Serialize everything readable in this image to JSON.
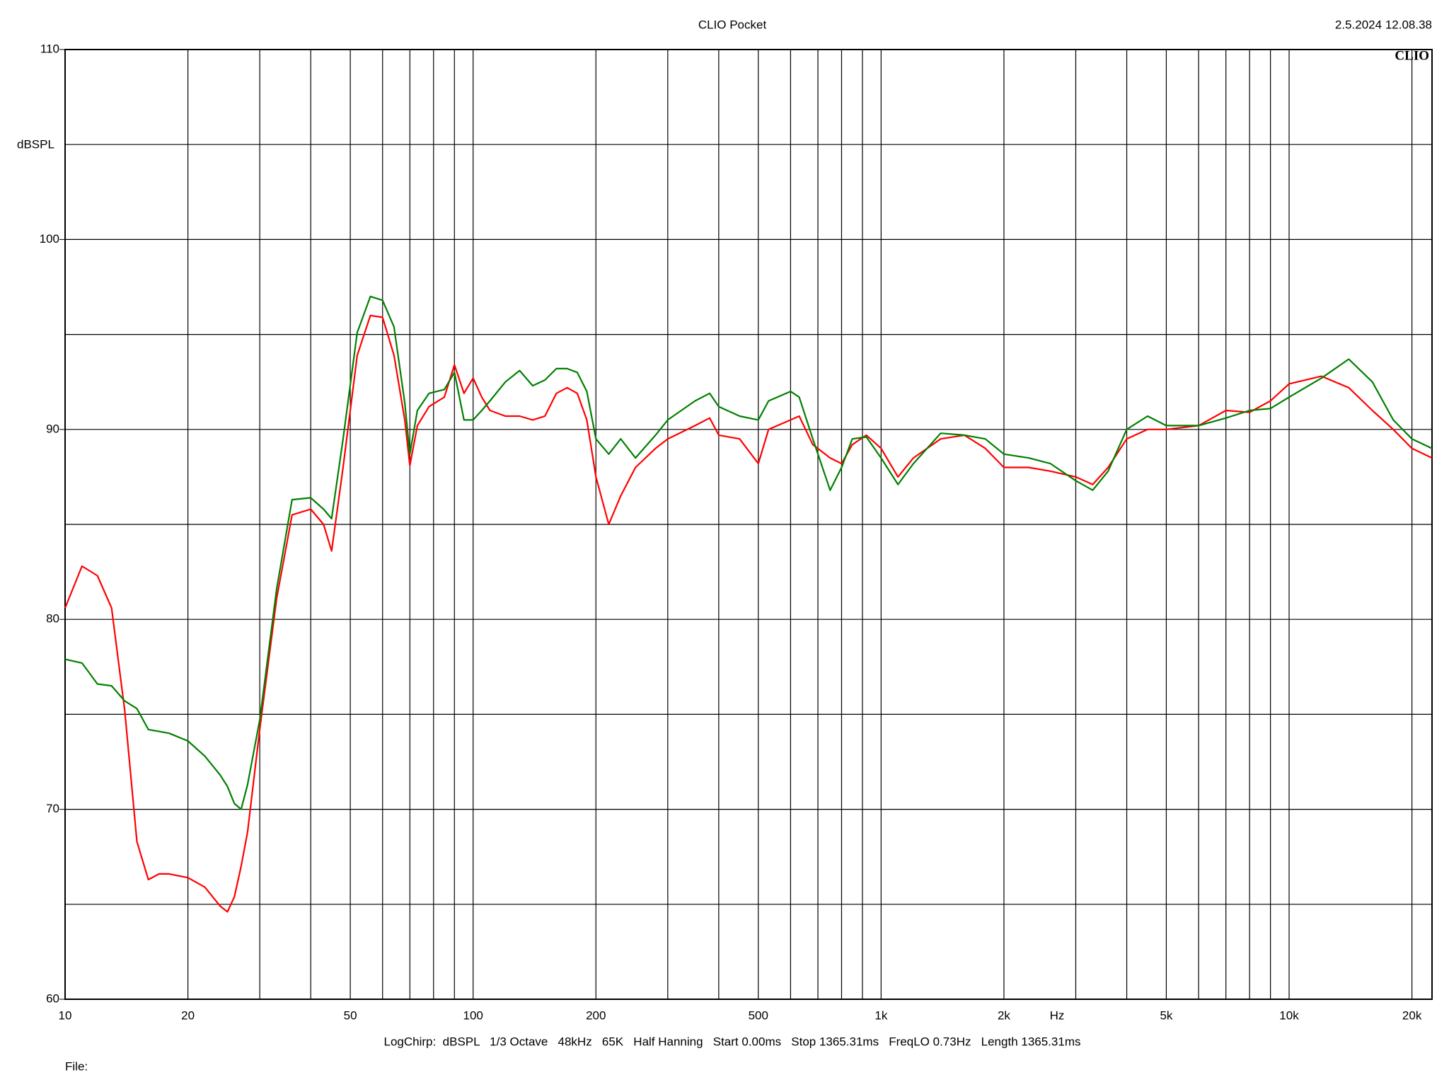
{
  "chart_data": {
    "type": "line",
    "title": "CLIO Pocket",
    "timestamp": "2.5.2024 12.08.38",
    "logo": "CLIO",
    "ylabel": "dBSPL",
    "x_unit": "Hz",
    "settings": "LogChirp:  dBSPL   1/3 Octave   48kHz   65K   Half Hanning   Start 0.00ms   Stop 1365.31ms   FreqLO 0.73Hz   Length 1365.31ms",
    "file_label": "File:",
    "log_x": true,
    "grid": true,
    "xlim": [
      10,
      22400
    ],
    "ylim": [
      60,
      110
    ],
    "xticks": [
      10,
      20,
      50,
      100,
      200,
      500,
      {
        "value": 1000,
        "label": "1k"
      },
      {
        "value": 2000,
        "label": "2k"
      },
      {
        "value": 5000,
        "label": "5k"
      },
      {
        "value": 10000,
        "label": "10k"
      },
      {
        "value": 20000,
        "label": "20k"
      }
    ],
    "minor_xticks": [
      30,
      40,
      60,
      70,
      80,
      90,
      300,
      400,
      600,
      700,
      800,
      900,
      3000,
      4000,
      6000,
      7000,
      8000,
      9000
    ],
    "yticks": [
      60,
      70,
      80,
      90,
      100,
      110
    ],
    "minor_yticks": [
      65,
      75,
      85,
      95,
      105
    ],
    "x": [
      10,
      11,
      12,
      13,
      14,
      15,
      16,
      17,
      18,
      20,
      22,
      24,
      25,
      26,
      27,
      28,
      30,
      33,
      36,
      40,
      43,
      45,
      48,
      52,
      56,
      60,
      64,
      68,
      70,
      73,
      78,
      85,
      90,
      95,
      100,
      105,
      110,
      120,
      130,
      140,
      150,
      160,
      170,
      180,
      190,
      200,
      215,
      230,
      250,
      280,
      300,
      350,
      380,
      400,
      450,
      500,
      530,
      600,
      630,
      680,
      750,
      800,
      850,
      920,
      1000,
      1100,
      1200,
      1400,
      1600,
      1800,
      2000,
      2300,
      2600,
      3000,
      3300,
      3600,
      4000,
      4500,
      5000,
      6000,
      7000,
      8000,
      9000,
      10000,
      12000,
      14000,
      16000,
      18000,
      20000,
      22400
    ],
    "series": [
      {
        "color": "#ff0000",
        "values": [
          80.6,
          82.8,
          82.3,
          80.6,
          75.2,
          68.3,
          66.3,
          66.6,
          66.6,
          66.4,
          65.9,
          64.9,
          64.6,
          65.4,
          67.0,
          68.8,
          74.2,
          81.1,
          85.5,
          85.8,
          85.0,
          83.6,
          88.0,
          93.9,
          96.0,
          95.9,
          93.9,
          90.5,
          88.1,
          90.2,
          91.2,
          91.7,
          93.4,
          91.9,
          92.7,
          91.7,
          91.0,
          90.7,
          90.7,
          90.5,
          90.7,
          91.9,
          92.2,
          91.9,
          90.5,
          87.5,
          85.0,
          86.5,
          88.0,
          89.0,
          89.5,
          90.2,
          90.6,
          89.7,
          89.5,
          88.2,
          90.0,
          90.5,
          90.7,
          89.2,
          88.5,
          88.2,
          89.2,
          89.7,
          89.0,
          87.5,
          88.5,
          89.5,
          89.7,
          89.0,
          88.0,
          88.0,
          87.8,
          87.5,
          87.1,
          88.0,
          89.5,
          90.0,
          90.0,
          90.2,
          91.0,
          90.9,
          91.5,
          92.4,
          92.8,
          92.2,
          91.0,
          90.0,
          89.0,
          88.5
        ]
      },
      {
        "color": "#008000",
        "values": [
          77.9,
          77.7,
          76.6,
          76.5,
          75.7,
          75.3,
          74.2,
          74.1,
          74.0,
          73.6,
          72.8,
          71.8,
          71.2,
          70.3,
          70.0,
          71.3,
          74.7,
          81.6,
          86.3,
          86.4,
          85.8,
          85.3,
          89.5,
          95.1,
          97.0,
          96.8,
          95.4,
          91.4,
          88.7,
          91.0,
          91.9,
          92.1,
          93.0,
          90.5,
          90.5,
          91.0,
          91.5,
          92.5,
          93.1,
          92.3,
          92.6,
          93.2,
          93.2,
          93.0,
          92.0,
          89.5,
          88.7,
          89.5,
          88.5,
          89.7,
          90.5,
          91.5,
          91.9,
          91.2,
          90.7,
          90.5,
          91.5,
          92.0,
          91.7,
          89.5,
          86.8,
          88.0,
          89.5,
          89.6,
          88.5,
          87.1,
          88.2,
          89.8,
          89.7,
          89.5,
          88.7,
          88.5,
          88.2,
          87.3,
          86.8,
          87.8,
          90.0,
          90.7,
          90.2,
          90.2,
          90.6,
          91.0,
          91.1,
          91.7,
          92.7,
          93.7,
          92.5,
          90.5,
          89.5,
          89.0
        ]
      }
    ]
  }
}
